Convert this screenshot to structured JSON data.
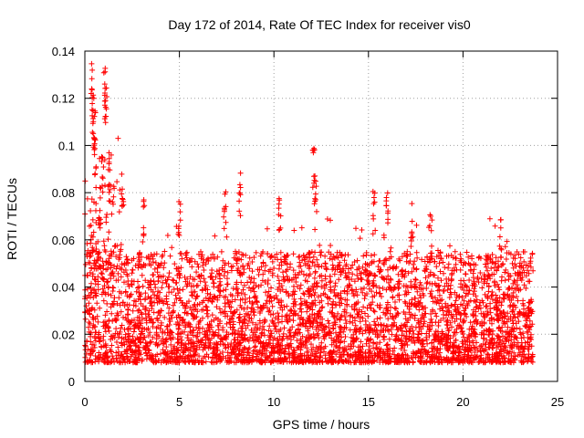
{
  "chart_data": {
    "type": "scatter",
    "title": "Day 172 of 2014, Rate Of TEC Index for receiver vis0",
    "xlabel": "GPS time / hours",
    "ylabel": "ROTI / TECUs",
    "xlim": [
      0,
      25
    ],
    "ylim": [
      0,
      0.14
    ],
    "xticks": [
      0,
      5,
      10,
      15,
      20,
      25
    ],
    "xtick_labels": [
      "0",
      "5",
      "10",
      "15",
      "20",
      "25"
    ],
    "yticks": [
      0,
      0.02,
      0.04,
      0.06,
      0.08,
      0.1,
      0.12,
      0.14
    ],
    "ytick_labels": [
      "0",
      "0.02",
      "0.04",
      "0.06",
      "0.08",
      "0.1",
      "0.12",
      "0.14"
    ],
    "grid": true,
    "marker": "+",
    "color": "#ff0000",
    "series": [
      {
        "name": "vis0",
        "x_range": [
          0.0,
          23.7
        ],
        "typical_range": [
          0.008,
          0.055
        ],
        "peaks": [
          {
            "x": 0.35,
            "y": 0.135
          },
          {
            "x": 0.45,
            "y": 0.122
          },
          {
            "x": 0.5,
            "y": 0.115
          },
          {
            "x": 0.55,
            "y": 0.105
          },
          {
            "x": 1.05,
            "y": 0.135
          },
          {
            "x": 1.1,
            "y": 0.127
          },
          {
            "x": 0.95,
            "y": 0.1
          },
          {
            "x": 1.3,
            "y": 0.095
          },
          {
            "x": 0.8,
            "y": 0.085
          },
          {
            "x": 2.0,
            "y": 0.089
          },
          {
            "x": 3.1,
            "y": 0.079
          },
          {
            "x": 5.0,
            "y": 0.081
          },
          {
            "x": 7.4,
            "y": 0.082
          },
          {
            "x": 8.2,
            "y": 0.09
          },
          {
            "x": 10.3,
            "y": 0.079
          },
          {
            "x": 12.1,
            "y": 0.102
          },
          {
            "x": 12.2,
            "y": 0.09
          },
          {
            "x": 15.3,
            "y": 0.082
          },
          {
            "x": 16.0,
            "y": 0.082
          },
          {
            "x": 17.3,
            "y": 0.077
          },
          {
            "x": 18.3,
            "y": 0.071
          },
          {
            "x": 22.0,
            "y": 0.069
          }
        ]
      }
    ]
  }
}
